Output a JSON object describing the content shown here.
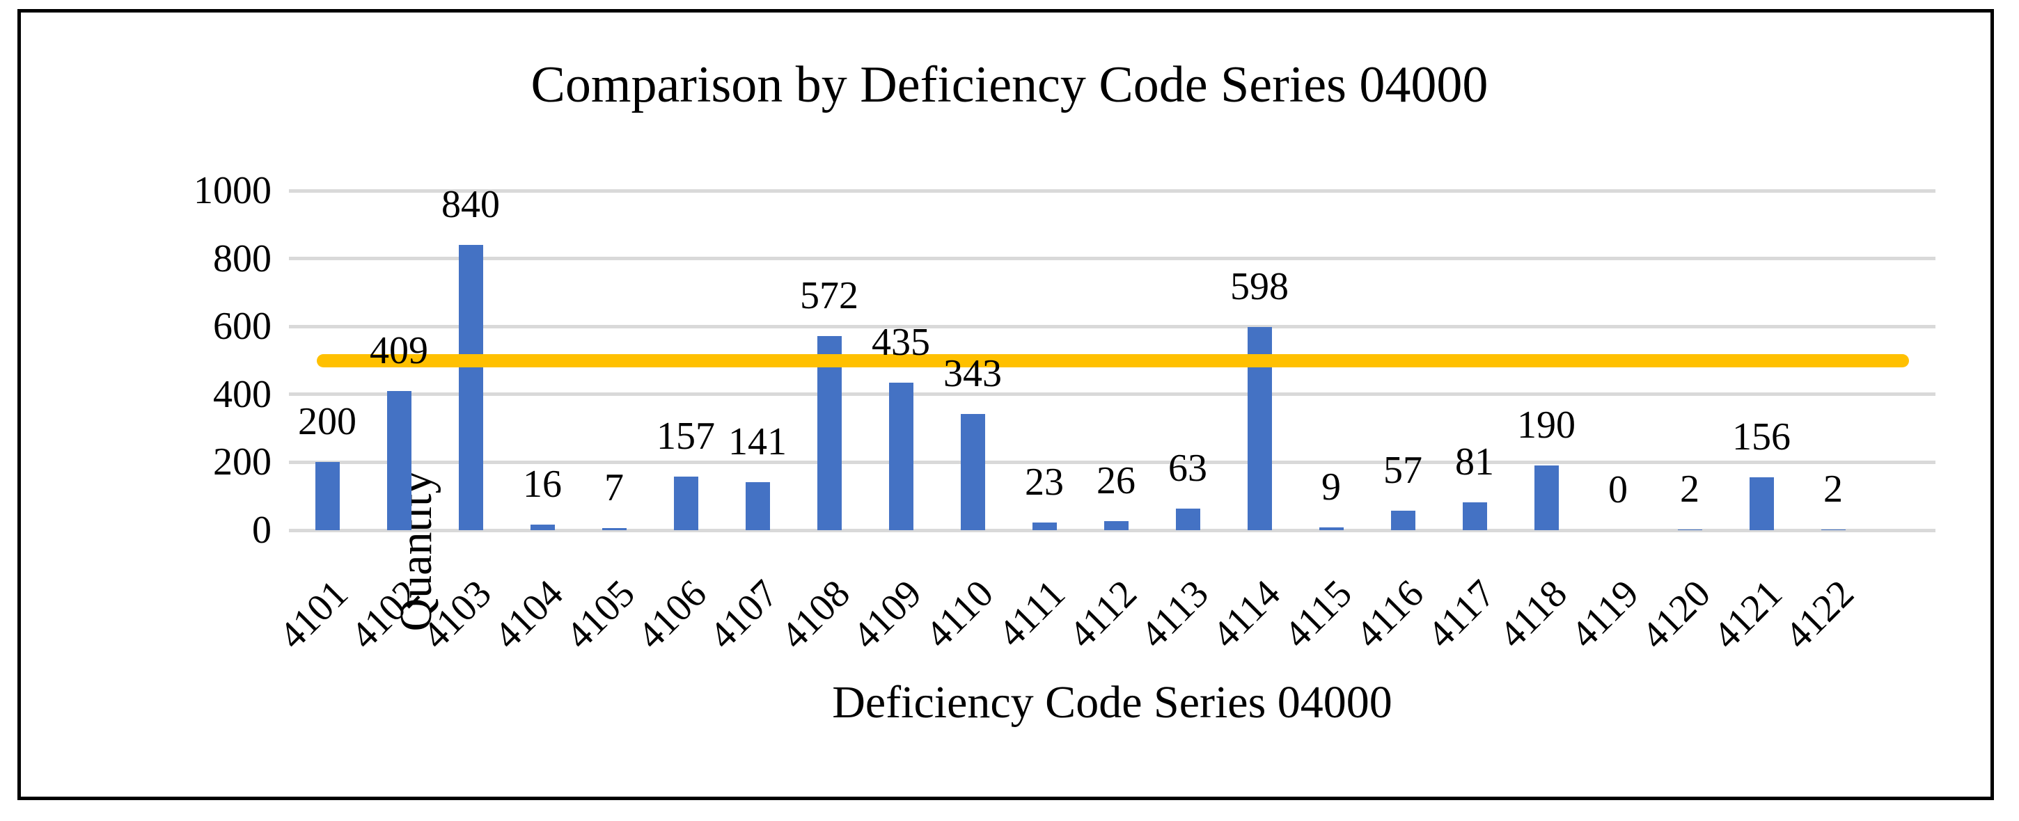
{
  "chart_data": {
    "type": "bar",
    "title": "Comparison by Deficiency Code Series 04000",
    "xlabel": "Deficiency Code Series 04000",
    "ylabel": "Quantity",
    "categories": [
      "4101",
      "4102",
      "4103",
      "4104",
      "4105",
      "4106",
      "4107",
      "4108",
      "4109",
      "4110",
      "4111",
      "4112",
      "4113",
      "4114",
      "4115",
      "4116",
      "4117",
      "4118",
      "4119",
      "4120",
      "4121",
      "4122"
    ],
    "values": [
      200,
      409,
      840,
      16,
      7,
      157,
      141,
      572,
      435,
      343,
      23,
      26,
      63,
      598,
      9,
      57,
      81,
      190,
      0,
      2,
      156,
      2
    ],
    "data_labels_shown": true,
    "yticks": [
      0,
      200,
      400,
      600,
      800,
      1000
    ],
    "ylim": [
      0,
      1000
    ],
    "grid": true,
    "legend": "none",
    "reference_line": {
      "value": 500
    },
    "colors": {
      "bar": "#4472C4",
      "reference": "#FFC000",
      "gridline": "#D9D9D9",
      "text": "#000000",
      "frame_border": "#000000"
    }
  }
}
